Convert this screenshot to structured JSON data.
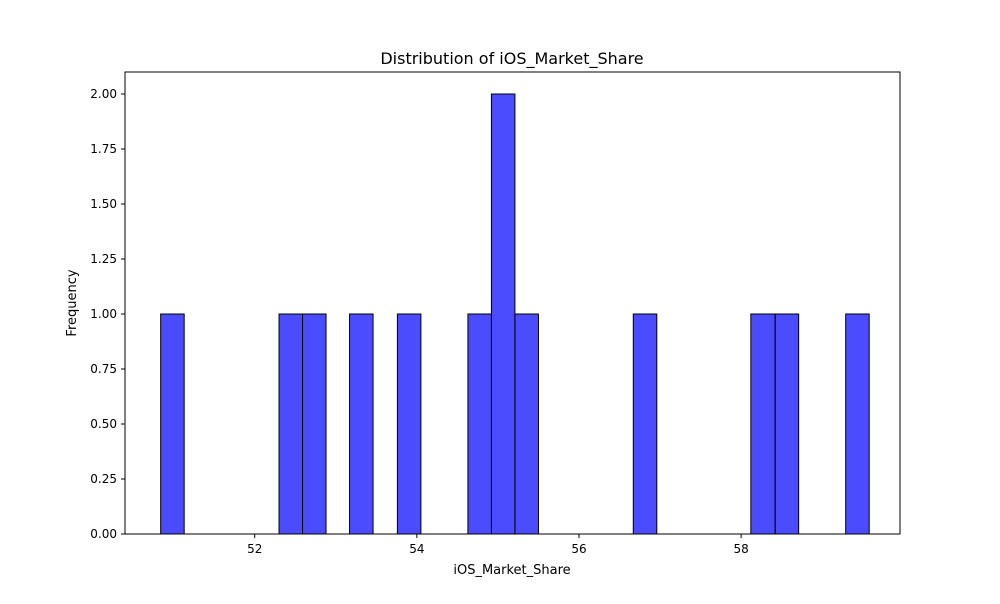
{
  "chart_data": {
    "type": "bar",
    "title": "Distribution of iOS_Market_Share",
    "xlabel": "iOS_Market_Share",
    "ylabel": "Frequency",
    "xlim": [
      50.4,
      59.96
    ],
    "ylim": [
      0,
      2.1
    ],
    "x_ticks": [
      52,
      54,
      56,
      58
    ],
    "x_tick_labels": [
      "52",
      "54",
      "56",
      "58"
    ],
    "y_ticks": [
      0,
      0.25,
      0.5,
      0.75,
      1.0,
      1.25,
      1.5,
      1.75,
      2.0
    ],
    "y_tick_labels": [
      "0.00",
      "0.25",
      "0.50",
      "0.75",
      "1.00",
      "1.25",
      "1.50",
      "1.75",
      "2.00"
    ],
    "bins": [
      {
        "x0": 50.84,
        "x1": 51.13,
        "count": 1
      },
      {
        "x0": 52.3,
        "x1": 52.59,
        "count": 1
      },
      {
        "x0": 52.59,
        "x1": 52.88,
        "count": 1
      },
      {
        "x0": 53.17,
        "x1": 53.46,
        "count": 1
      },
      {
        "x0": 53.76,
        "x1": 54.05,
        "count": 1
      },
      {
        "x0": 54.63,
        "x1": 54.92,
        "count": 1
      },
      {
        "x0": 54.92,
        "x1": 55.21,
        "count": 2
      },
      {
        "x0": 55.21,
        "x1": 55.5,
        "count": 1
      },
      {
        "x0": 56.67,
        "x1": 56.96,
        "count": 1
      },
      {
        "x0": 58.12,
        "x1": 58.42,
        "count": 1
      },
      {
        "x0": 58.42,
        "x1": 58.71,
        "count": 1
      },
      {
        "x0": 59.29,
        "x1": 59.58,
        "count": 1
      }
    ],
    "bar_color": "#0000ff",
    "bar_opacity": 0.7,
    "edge_color": "#000000",
    "grid": false,
    "legend": "none"
  }
}
